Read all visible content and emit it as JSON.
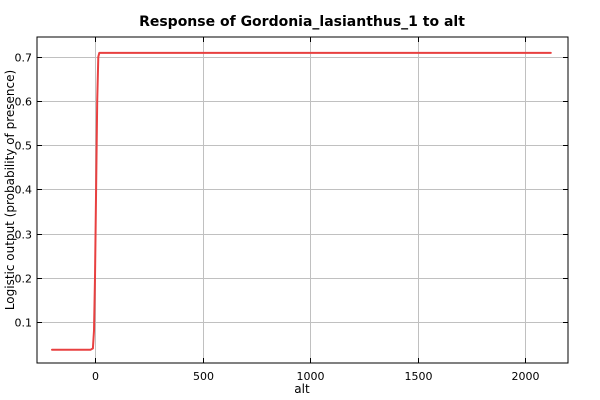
{
  "chart_data": {
    "type": "line",
    "title": "Response of Gordonia_lasianthus_1 to alt",
    "xlabel": "alt",
    "ylabel": "Logistic output (probability of presence)",
    "xlim": [
      -270,
      2200
    ],
    "ylim": [
      0.007,
      0.745
    ],
    "xticks": [
      0,
      500,
      1000,
      1500,
      2000
    ],
    "xtick_labels": [
      "0",
      "500",
      "1000",
      "1500",
      "2000"
    ],
    "yticks": [
      0.1,
      0.2,
      0.3,
      0.4,
      0.5,
      0.6,
      0.7
    ],
    "ytick_labels": [
      "0.1",
      "0.2",
      "0.3",
      "0.4",
      "0.5",
      "0.6",
      "0.7"
    ],
    "grid": true,
    "series": [
      {
        "color": "#e84040",
        "x": [
          -200,
          -20,
          -10,
          -5,
          0,
          5,
          10,
          15,
          20,
          2120
        ],
        "y": [
          0.037,
          0.037,
          0.04,
          0.08,
          0.2,
          0.4,
          0.6,
          0.7,
          0.709,
          0.709
        ]
      }
    ]
  }
}
